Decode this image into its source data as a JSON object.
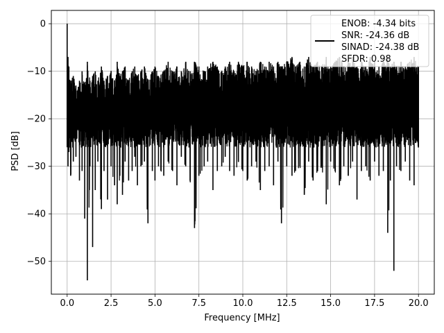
{
  "chart_data": {
    "type": "line",
    "title": "",
    "xlabel": "Frequency [MHz]",
    "ylabel": "PSD [dB]",
    "xlim": [
      -0.9,
      20.9
    ],
    "ylim": [
      -56.9,
      2.8
    ],
    "xticks": [
      0.0,
      2.5,
      5.0,
      7.5,
      10.0,
      12.5,
      15.0,
      17.5,
      20.0
    ],
    "xtick_labels": [
      "0.0",
      "2.5",
      "5.0",
      "7.5",
      "10.0",
      "12.5",
      "15.0",
      "17.5",
      "20.0"
    ],
    "yticks": [
      0,
      -10,
      -20,
      -30,
      -40,
      -50
    ],
    "ytick_labels": [
      "0",
      "−10",
      "−20",
      "−30",
      "−40",
      "−50"
    ],
    "grid": true,
    "legend_position": "top-right",
    "legend_lines": [
      "ENOB: -4.34 bits",
      "SNR: -24.36 dB",
      "SINAD: -24.38 dB",
      "SFDR: 0.98"
    ],
    "series": [
      {
        "color": "#000000",
        "noise_band_db": [
          -26,
          -7
        ],
        "x": [
          0.0,
          0.05,
          0.1,
          0.2,
          0.35,
          0.5,
          0.7,
          0.85,
          1.0,
          1.15,
          1.3,
          1.45,
          1.6,
          1.75,
          1.95,
          2.1,
          2.3,
          2.5,
          2.7,
          2.85,
          3.0,
          3.15,
          3.3,
          3.5,
          3.7,
          3.85,
          4.0,
          4.2,
          4.4,
          4.6,
          4.85,
          5.0,
          5.2,
          5.5,
          5.75,
          6.0,
          6.25,
          6.5,
          6.75,
          7.0,
          7.25,
          7.5,
          7.8,
          8.0,
          8.3,
          8.55,
          8.8,
          9.0,
          9.25,
          9.5,
          9.75,
          10.0,
          10.25,
          10.5,
          10.75,
          11.0,
          11.25,
          11.5,
          11.75,
          12.0,
          12.2,
          12.5,
          12.8,
          13.0,
          13.25,
          13.5,
          13.75,
          14.0,
          14.25,
          14.5,
          14.75,
          15.0,
          15.25,
          15.5,
          15.75,
          16.0,
          16.25,
          16.5,
          16.75,
          17.0,
          17.25,
          17.5,
          17.75,
          18.0,
          18.25,
          18.4,
          18.6,
          18.75,
          19.0,
          19.25,
          19.5,
          19.75,
          20.0
        ],
        "upper": [
          0.0,
          -7,
          -9,
          -12,
          -11,
          -13,
          -12,
          -10,
          -13,
          -8,
          -12,
          -11,
          -10,
          -12,
          -9,
          -12,
          -11,
          -10,
          -12,
          -8,
          -11,
          -10,
          -9,
          -12,
          -10,
          -9,
          -11,
          -10,
          -9,
          -12,
          -10,
          -9,
          -11,
          -10,
          -8,
          -10,
          -9,
          -10,
          -8,
          -10,
          -8,
          -9,
          -10,
          -9,
          -8,
          -9,
          -10,
          -9,
          -8,
          -10,
          -8,
          -9,
          -8,
          -9,
          -10,
          -8,
          -9,
          -8,
          -9,
          -8,
          -9,
          -8,
          -7,
          -9,
          -8,
          -9,
          -7,
          -9,
          -8,
          -9,
          -7,
          -9,
          -8,
          -7,
          -9,
          -8,
          -7,
          -9,
          -8,
          -9,
          -7,
          -8,
          -9,
          -8,
          -7,
          -9,
          -8,
          -9,
          -8,
          -9,
          -8,
          -7,
          -9
        ],
        "lower": [
          -26,
          -30,
          -27,
          -32,
          -29,
          -28,
          -33,
          -31,
          -41,
          -54,
          -30,
          -47,
          -35,
          -29,
          -39,
          -31,
          -37,
          -30,
          -34,
          -38,
          -32,
          -36,
          -29,
          -33,
          -31,
          -28,
          -34,
          -30,
          -29,
          -42,
          -31,
          -33,
          -30,
          -32,
          -29,
          -31,
          -34,
          -28,
          -30,
          -33,
          -43,
          -32,
          -30,
          -29,
          -35,
          -31,
          -30,
          -28,
          -31,
          -32,
          -29,
          -31,
          -33,
          -30,
          -29,
          -35,
          -31,
          -30,
          -34,
          -29,
          -42,
          -30,
          -32,
          -31,
          -30,
          -36,
          -29,
          -33,
          -31,
          -30,
          -38,
          -29,
          -31,
          -34,
          -30,
          -32,
          -29,
          -37,
          -31,
          -30,
          -33,
          -29,
          -32,
          -31,
          -44,
          -33,
          -52,
          -30,
          -31,
          -29,
          -33,
          -34,
          -26
        ]
      }
    ]
  }
}
